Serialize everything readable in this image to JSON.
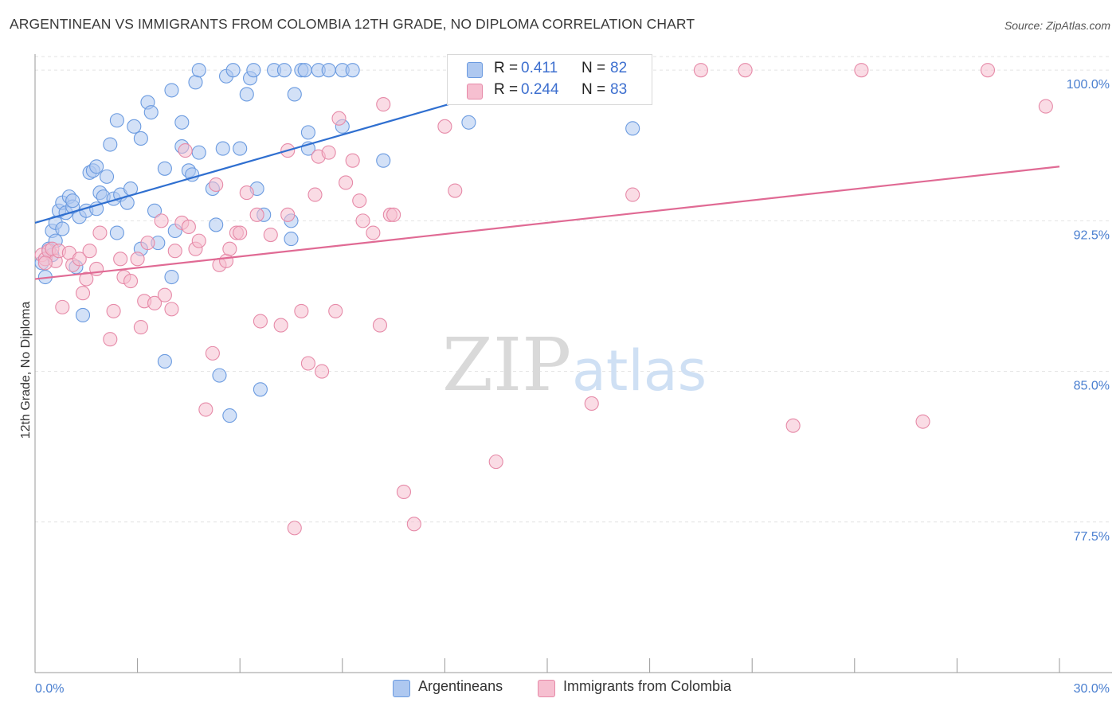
{
  "title": "ARGENTINEAN VS IMMIGRANTS FROM COLOMBIA 12TH GRADE, NO DIPLOMA CORRELATION CHART",
  "source": "Source: ZipAtlas.com",
  "watermark": {
    "zip": "ZIP",
    "atlas": "atlas"
  },
  "legend": {
    "r_label": "R =",
    "n_label": "N =",
    "rows": [
      {
        "name": "Argentineans",
        "r": "0.411",
        "n": "82",
        "fill": "#aec8f0",
        "stroke": "#6b9be0"
      },
      {
        "name": "Immigrants from Colombia",
        "r": "0.244",
        "n": "83",
        "fill": "#f6bfd0",
        "stroke": "#e68aa8"
      }
    ]
  },
  "chart_data": {
    "type": "scatter",
    "ylabel": "12th Grade, No Diploma",
    "xlim": [
      0,
      30
    ],
    "ylim": [
      70.0,
      100.8
    ],
    "x_tick_labels": [
      {
        "value": 0,
        "label": "0.0%"
      },
      {
        "value": 30,
        "label": "30.0%"
      }
    ],
    "x_minor_ticks": [
      0,
      3,
      6,
      9,
      12,
      15,
      18,
      21,
      24,
      27,
      30
    ],
    "y_ticks": [
      {
        "value": 100.0,
        "label": "100.0%"
      },
      {
        "value": 92.5,
        "label": "92.5%"
      },
      {
        "value": 85.0,
        "label": "85.0%"
      },
      {
        "value": 77.5,
        "label": "77.5%"
      }
    ],
    "grid": true,
    "series": [
      {
        "name": "Argentineans",
        "color": "#6b9be0",
        "fill": "#aec8f0",
        "trend": {
          "x": [
            0,
            15.8
          ],
          "y": [
            92.4,
            100.1
          ]
        },
        "points": [
          [
            0.2,
            90.4
          ],
          [
            0.3,
            89.7
          ],
          [
            0.4,
            91.1
          ],
          [
            0.5,
            92.0
          ],
          [
            0.5,
            90.8
          ],
          [
            0.6,
            92.4
          ],
          [
            0.6,
            91.5
          ],
          [
            0.7,
            93.0
          ],
          [
            0.8,
            93.4
          ],
          [
            0.8,
            92.1
          ],
          [
            0.9,
            92.9
          ],
          [
            1.0,
            93.7
          ],
          [
            1.1,
            93.2
          ],
          [
            1.1,
            93.5
          ],
          [
            1.2,
            90.2
          ],
          [
            1.3,
            92.7
          ],
          [
            1.4,
            87.8
          ],
          [
            1.5,
            93.0
          ],
          [
            1.6,
            94.9
          ],
          [
            1.7,
            95.0
          ],
          [
            1.8,
            95.2
          ],
          [
            1.8,
            93.1
          ],
          [
            1.9,
            93.9
          ],
          [
            2.0,
            93.7
          ],
          [
            2.1,
            94.7
          ],
          [
            2.2,
            96.3
          ],
          [
            2.3,
            93.6
          ],
          [
            2.4,
            97.5
          ],
          [
            2.4,
            91.9
          ],
          [
            2.5,
            93.8
          ],
          [
            2.7,
            93.4
          ],
          [
            2.8,
            94.1
          ],
          [
            2.9,
            97.2
          ],
          [
            3.1,
            96.6
          ],
          [
            3.1,
            91.1
          ],
          [
            3.3,
            98.4
          ],
          [
            3.4,
            97.9
          ],
          [
            3.5,
            93.0
          ],
          [
            3.6,
            91.4
          ],
          [
            3.8,
            85.5
          ],
          [
            3.8,
            95.1
          ],
          [
            4.0,
            89.7
          ],
          [
            4.0,
            99.0
          ],
          [
            4.1,
            92.0
          ],
          [
            4.3,
            96.2
          ],
          [
            4.3,
            97.4
          ],
          [
            4.5,
            95.0
          ],
          [
            4.6,
            94.8
          ],
          [
            4.7,
            99.4
          ],
          [
            4.8,
            95.9
          ],
          [
            4.8,
            100.0
          ],
          [
            5.2,
            94.1
          ],
          [
            5.3,
            92.3
          ],
          [
            5.4,
            84.8
          ],
          [
            5.5,
            96.1
          ],
          [
            5.6,
            99.7
          ],
          [
            5.7,
            82.8
          ],
          [
            5.8,
            100.0
          ],
          [
            6.0,
            96.1
          ],
          [
            6.2,
            98.8
          ],
          [
            6.3,
            99.6
          ],
          [
            6.4,
            100.0
          ],
          [
            6.5,
            94.1
          ],
          [
            6.6,
            84.1
          ],
          [
            6.7,
            92.8
          ],
          [
            7.0,
            100.0
          ],
          [
            7.3,
            100.0
          ],
          [
            7.5,
            92.5
          ],
          [
            7.5,
            91.6
          ],
          [
            7.6,
            98.8
          ],
          [
            7.8,
            100.0
          ],
          [
            7.9,
            100.0
          ],
          [
            8.0,
            96.1
          ],
          [
            8.0,
            96.9
          ],
          [
            8.3,
            100.0
          ],
          [
            8.6,
            100.0
          ],
          [
            9.0,
            97.2
          ],
          [
            9.0,
            100.0
          ],
          [
            9.3,
            100.0
          ],
          [
            10.2,
            95.5
          ],
          [
            12.7,
            97.4
          ],
          [
            17.5,
            97.1
          ]
        ]
      },
      {
        "name": "Immigrants from Colombia",
        "color": "#e68aa8",
        "fill": "#f6bfd0",
        "trend": {
          "x": [
            0,
            30
          ],
          "y": [
            89.6,
            95.2
          ]
        },
        "points": [
          [
            0.2,
            90.8
          ],
          [
            0.3,
            90.6
          ],
          [
            0.4,
            91.0
          ],
          [
            0.5,
            91.1
          ],
          [
            0.6,
            90.5
          ],
          [
            0.7,
            91.0
          ],
          [
            0.8,
            88.2
          ],
          [
            1.0,
            90.9
          ],
          [
            1.1,
            90.3
          ],
          [
            1.3,
            90.6
          ],
          [
            1.4,
            88.9
          ],
          [
            1.5,
            89.6
          ],
          [
            1.6,
            91.0
          ],
          [
            1.8,
            90.1
          ],
          [
            1.9,
            91.9
          ],
          [
            2.2,
            86.6
          ],
          [
            2.3,
            88.0
          ],
          [
            2.5,
            90.6
          ],
          [
            2.6,
            89.7
          ],
          [
            2.8,
            89.5
          ],
          [
            3.0,
            90.6
          ],
          [
            3.1,
            87.2
          ],
          [
            3.2,
            88.5
          ],
          [
            3.3,
            91.4
          ],
          [
            3.5,
            88.4
          ],
          [
            3.7,
            92.5
          ],
          [
            3.8,
            88.8
          ],
          [
            4.0,
            88.1
          ],
          [
            4.1,
            91.0
          ],
          [
            4.3,
            92.4
          ],
          [
            4.4,
            96.0
          ],
          [
            4.5,
            92.2
          ],
          [
            4.7,
            91.1
          ],
          [
            4.8,
            91.5
          ],
          [
            5.0,
            83.1
          ],
          [
            5.2,
            85.9
          ],
          [
            5.3,
            94.3
          ],
          [
            5.4,
            90.3
          ],
          [
            5.6,
            90.5
          ],
          [
            5.7,
            91.1
          ],
          [
            5.9,
            91.9
          ],
          [
            6.0,
            91.9
          ],
          [
            6.2,
            93.9
          ],
          [
            6.5,
            92.8
          ],
          [
            6.6,
            87.5
          ],
          [
            6.9,
            91.8
          ],
          [
            7.2,
            87.3
          ],
          [
            7.4,
            96.0
          ],
          [
            7.4,
            92.8
          ],
          [
            7.6,
            77.2
          ],
          [
            7.8,
            88.0
          ],
          [
            8.0,
            85.4
          ],
          [
            8.2,
            93.8
          ],
          [
            8.3,
            95.7
          ],
          [
            8.4,
            85.0
          ],
          [
            8.6,
            95.9
          ],
          [
            8.8,
            88.0
          ],
          [
            8.9,
            97.6
          ],
          [
            9.1,
            94.4
          ],
          [
            9.3,
            95.5
          ],
          [
            9.5,
            93.5
          ],
          [
            9.6,
            92.5
          ],
          [
            9.9,
            91.9
          ],
          [
            10.1,
            87.3
          ],
          [
            10.2,
            98.3
          ],
          [
            10.4,
            92.8
          ],
          [
            10.5,
            92.8
          ],
          [
            10.8,
            79.0
          ],
          [
            11.1,
            77.4
          ],
          [
            12.0,
            97.2
          ],
          [
            12.3,
            94.0
          ],
          [
            13.5,
            80.5
          ],
          [
            13.8,
            100.0
          ],
          [
            16.3,
            83.4
          ],
          [
            17.5,
            93.8
          ],
          [
            19.5,
            100.0
          ],
          [
            20.8,
            100.0
          ],
          [
            22.2,
            82.3
          ],
          [
            24.2,
            100.0
          ],
          [
            26.0,
            82.5
          ],
          [
            27.9,
            100.0
          ],
          [
            29.6,
            98.2
          ],
          [
            0.3,
            90.4
          ]
        ]
      }
    ]
  }
}
